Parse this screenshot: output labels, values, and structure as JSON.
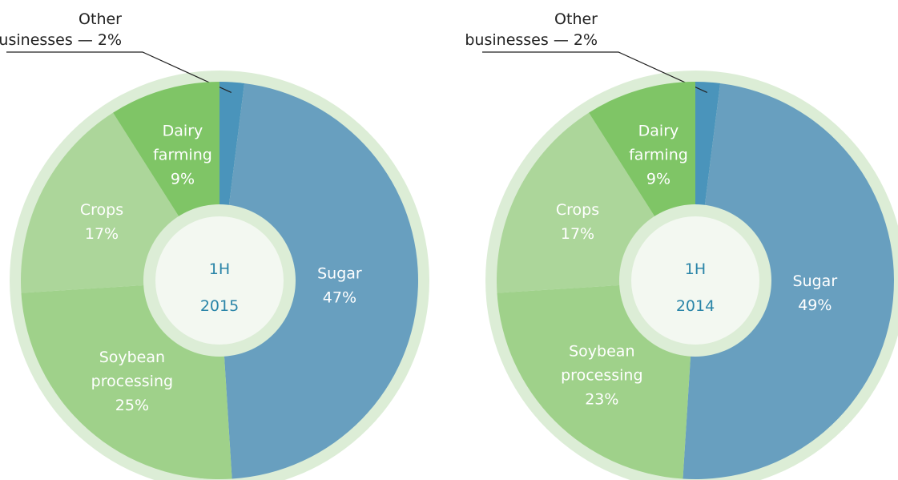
{
  "chart_data": [
    {
      "type": "donut",
      "center_label": "1H 2015",
      "categories": [
        "Other businesses",
        "Sugar",
        "Soybean processing",
        "Crops",
        "Dairy farming"
      ],
      "values": [
        2,
        47,
        25,
        17,
        9
      ],
      "value_labels": [
        "— 2%",
        "47%",
        "25%",
        "17%",
        "9%"
      ],
      "colors": [
        "#4a94bb",
        "#689fbf",
        "#9fd18a",
        "#acd69a",
        "#7fc566"
      ]
    },
    {
      "type": "donut",
      "center_label": "1H 2014",
      "categories": [
        "Other businesses",
        "Sugar",
        "Soybean processing",
        "Crops",
        "Dairy farming"
      ],
      "values": [
        2,
        49,
        23,
        17,
        9
      ],
      "value_labels": [
        "— 2%",
        "49%",
        "23%",
        "17%",
        "9%"
      ],
      "colors": [
        "#4a94bb",
        "#689fbf",
        "#9fd18a",
        "#acd69a",
        "#7fc566"
      ]
    }
  ]
}
